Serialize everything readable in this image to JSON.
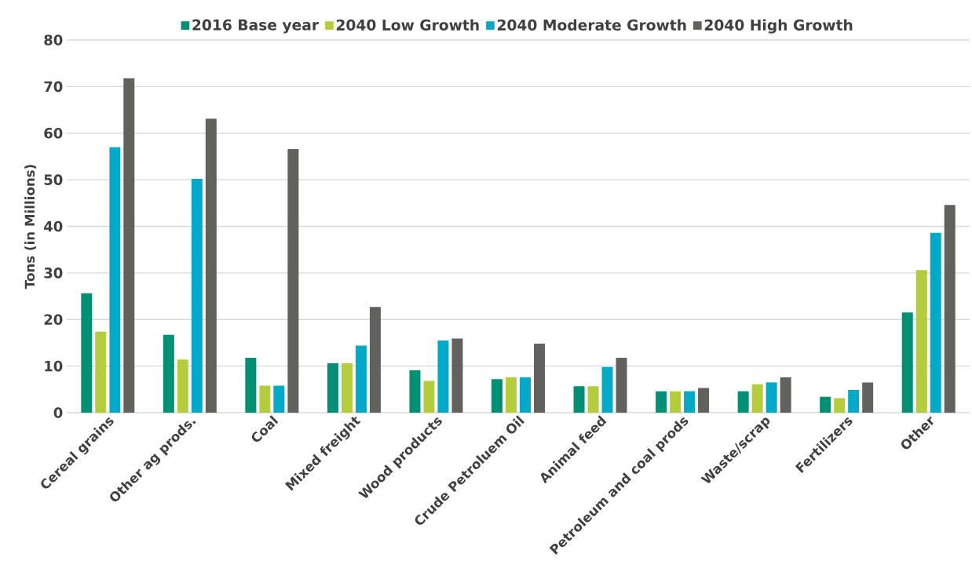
{
  "chart_data": {
    "type": "bar",
    "ylabel": "Tons (in Millions)",
    "categories": [
      "Cereal grains",
      "Other ag prods.",
      "Coal",
      "Mixed freight",
      "Wood products",
      "Crude Petroluem Oil",
      "Animal feed",
      "Petroleum and coal prods",
      "Waste/scrap",
      "Fertilizers",
      "Other"
    ],
    "series": [
      {
        "name": "2016 Base year",
        "color": "#009174",
        "values": [
          25.7,
          16.7,
          11.8,
          10.6,
          9.1,
          7.2,
          5.7,
          4.6,
          4.6,
          3.4,
          21.5
        ]
      },
      {
        "name": "2040 Low Growth",
        "color": "#b5cd3a",
        "values": [
          17.4,
          11.4,
          5.8,
          10.6,
          6.8,
          7.6,
          5.7,
          4.6,
          6.1,
          3.1,
          30.6
        ]
      },
      {
        "name": "2040 Moderate Growth",
        "color": "#00aac8",
        "values": [
          57,
          50.2,
          5.8,
          14.4,
          15.5,
          7.6,
          9.8,
          4.6,
          6.5,
          4.9,
          38.6
        ]
      },
      {
        "name": "2040 High Growth",
        "color": "#62615c",
        "values": [
          71.8,
          63.1,
          56.6,
          22.7,
          15.9,
          14.8,
          11.8,
          5.3,
          7.6,
          6.5,
          44.6
        ]
      }
    ],
    "ylim": [
      0,
      80
    ],
    "yticks": [
      0,
      10,
      20,
      30,
      40,
      50,
      60,
      70,
      80
    ],
    "grid": "y",
    "legend": "top"
  }
}
